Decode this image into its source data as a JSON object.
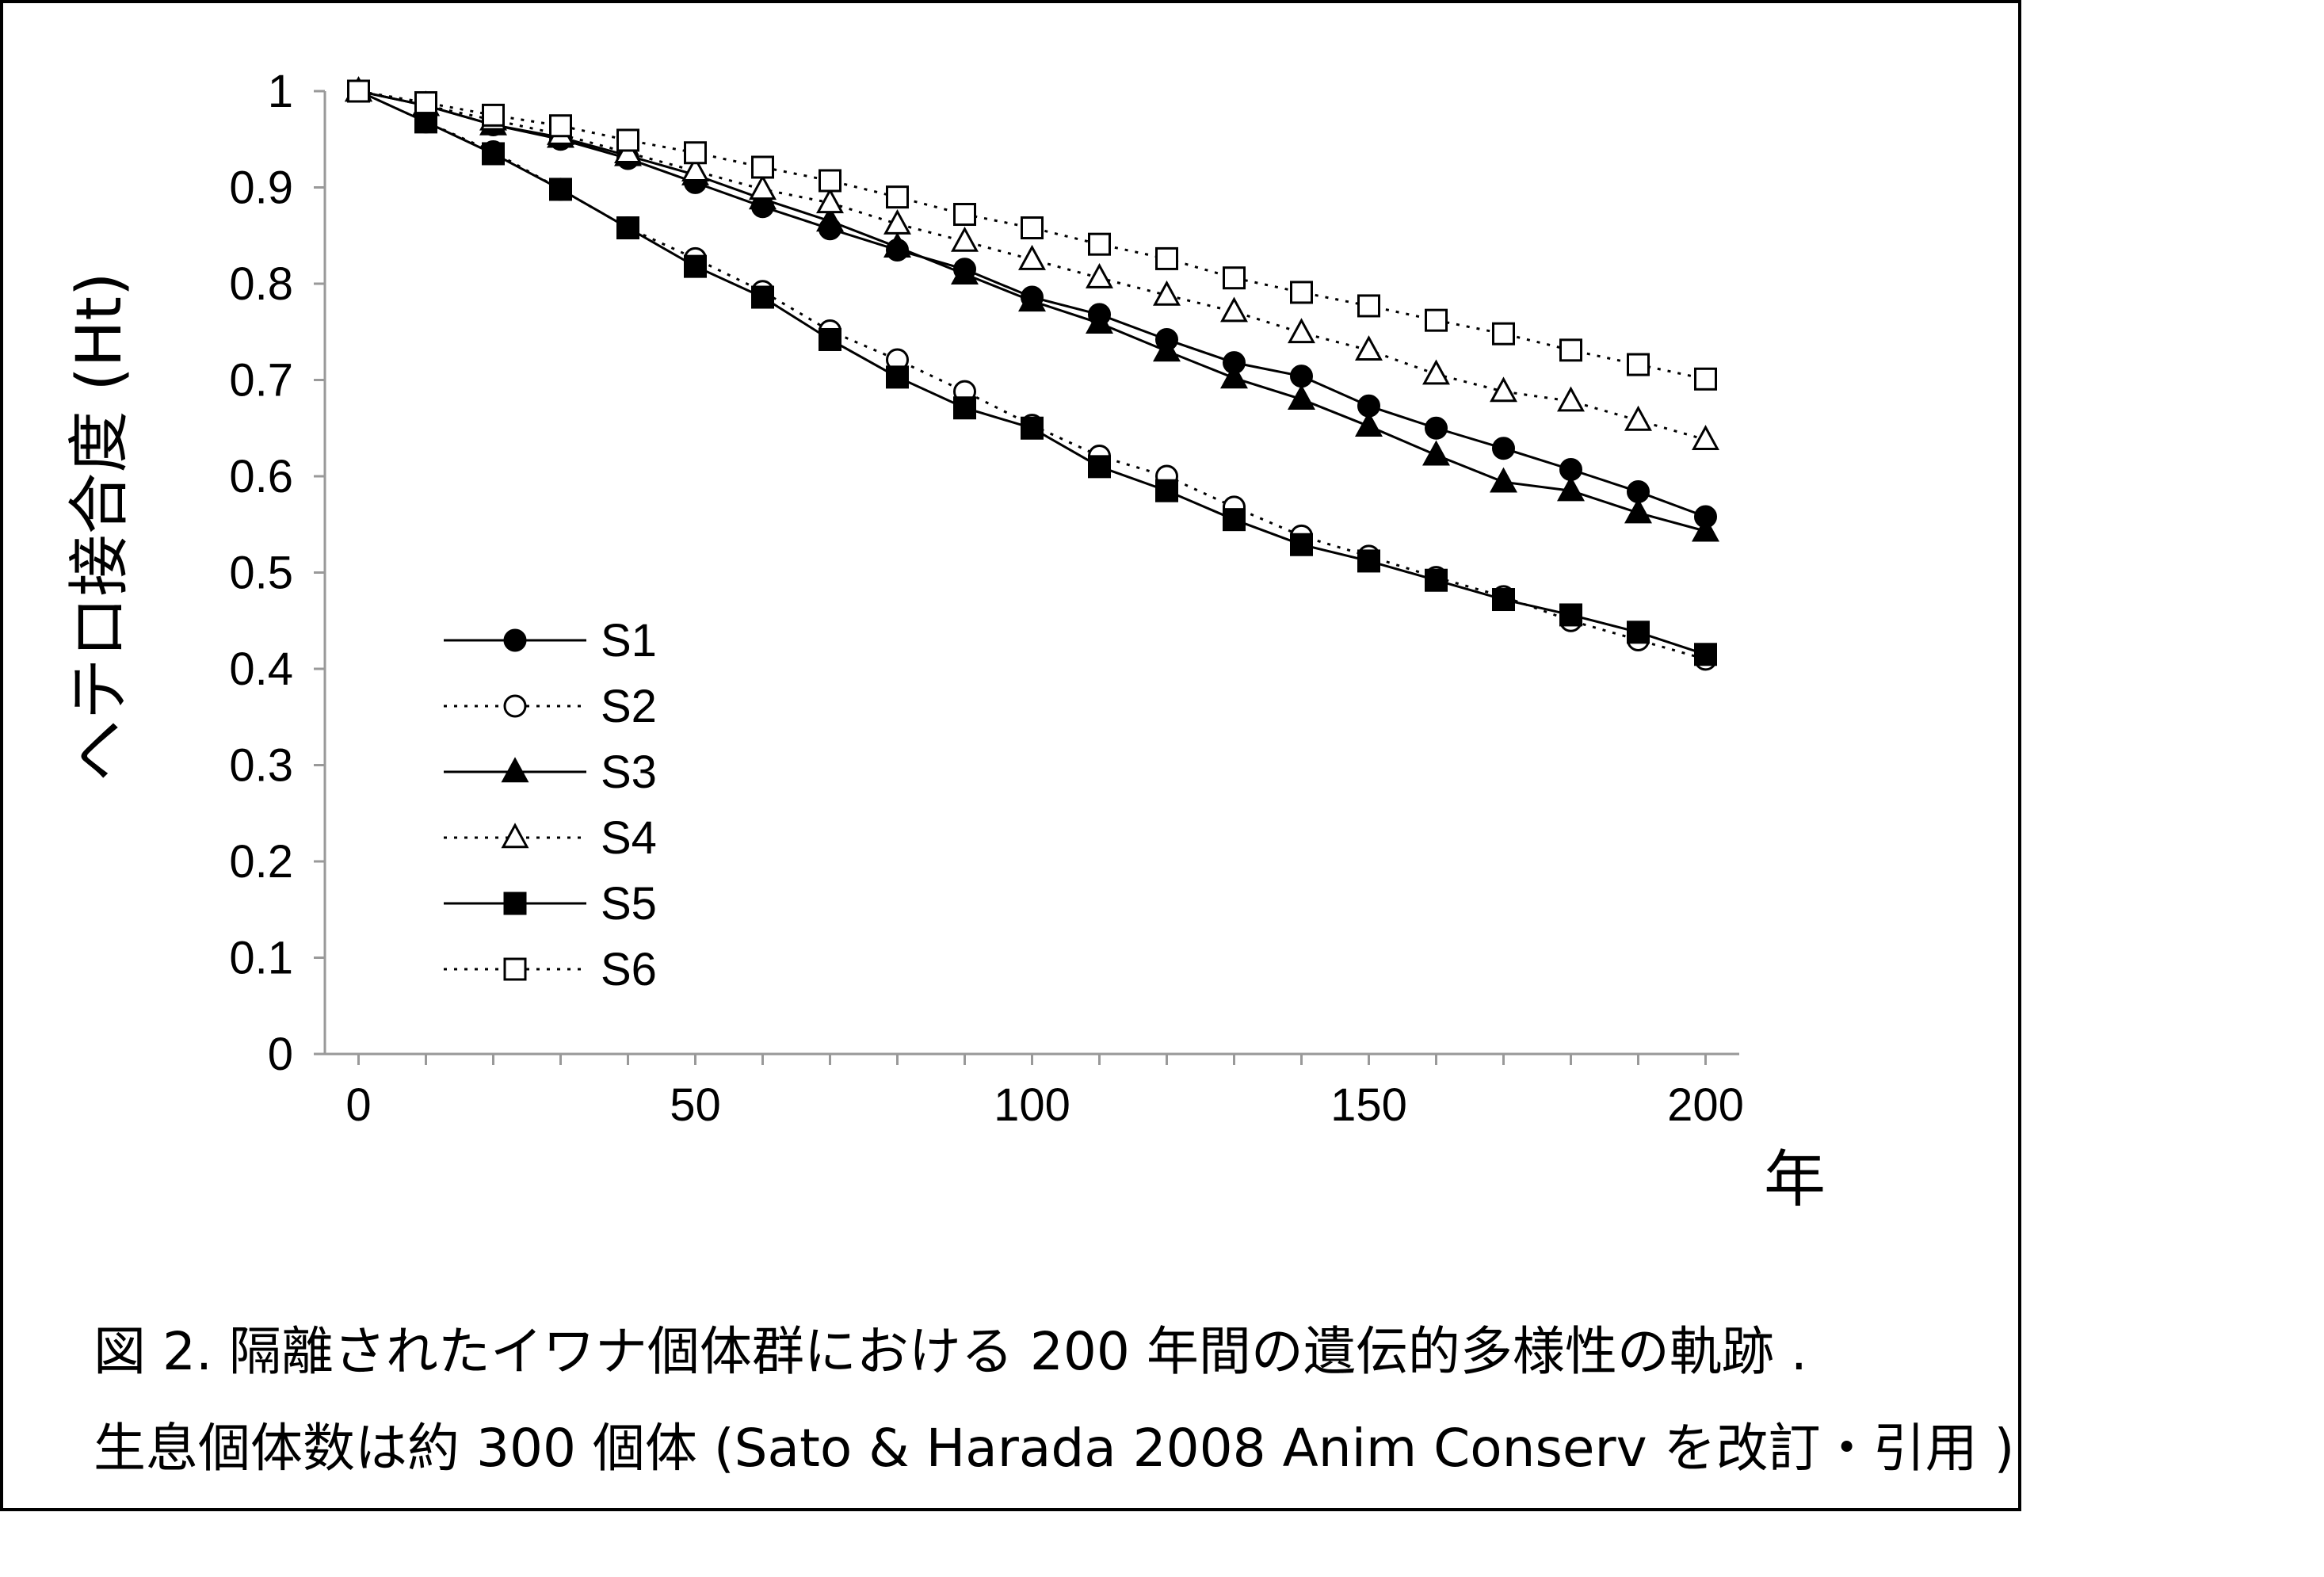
{
  "chart_data": {
    "type": "line",
    "title": "",
    "xlabel": "年",
    "ylabel": "ヘテロ接合度 (Ht)",
    "xlim": [
      -5,
      205
    ],
    "ylim": [
      0,
      1
    ],
    "x_ticks": [
      "0",
      "50",
      "100",
      "150",
      "200"
    ],
    "y_ticks": [
      "0",
      "0.1",
      "0.2",
      "0.3",
      "0.4",
      "0.5",
      "0.6",
      "0.7",
      "0.8",
      "0.9",
      "1"
    ],
    "grid": false,
    "legend_position": "lower-left",
    "x": [
      0,
      10,
      20,
      30,
      40,
      50,
      60,
      70,
      80,
      90,
      100,
      110,
      120,
      130,
      140,
      150,
      160,
      170,
      180,
      190,
      200
    ],
    "series": [
      {
        "name": "S1",
        "marker": "filled-circle",
        "line": "solid",
        "values": [
          1.0,
          0.985,
          0.965,
          0.95,
          0.93,
          0.905,
          0.88,
          0.857,
          0.835,
          0.815,
          0.786,
          0.768,
          0.742,
          0.718,
          0.704,
          0.673,
          0.65,
          0.629,
          0.607,
          0.584,
          0.558
        ]
      },
      {
        "name": "S2",
        "marker": "open-circle",
        "line": "dotted",
        "values": [
          1.0,
          0.968,
          0.937,
          0.898,
          0.858,
          0.826,
          0.792,
          0.751,
          0.721,
          0.688,
          0.653,
          0.621,
          0.6,
          0.568,
          0.538,
          0.517,
          0.495,
          0.475,
          0.45,
          0.43,
          0.41
        ]
      },
      {
        "name": "S3",
        "marker": "filled-triangle",
        "line": "solid",
        "values": [
          1.0,
          0.985,
          0.965,
          0.952,
          0.933,
          0.913,
          0.888,
          0.865,
          0.838,
          0.81,
          0.782,
          0.759,
          0.73,
          0.702,
          0.68,
          0.652,
          0.622,
          0.594,
          0.585,
          0.562,
          0.543
        ]
      },
      {
        "name": "S4",
        "marker": "open-triangle",
        "line": "dotted",
        "values": [
          1.0,
          0.985,
          0.97,
          0.955,
          0.936,
          0.917,
          0.898,
          0.884,
          0.862,
          0.844,
          0.825,
          0.806,
          0.788,
          0.771,
          0.749,
          0.731,
          0.706,
          0.688,
          0.678,
          0.658,
          0.638
        ]
      },
      {
        "name": "S5",
        "marker": "filled-square",
        "line": "solid",
        "values": [
          1.0,
          0.968,
          0.935,
          0.898,
          0.858,
          0.818,
          0.786,
          0.742,
          0.703,
          0.671,
          0.65,
          0.61,
          0.585,
          0.555,
          0.529,
          0.512,
          0.492,
          0.472,
          0.456,
          0.438,
          0.415
        ]
      },
      {
        "name": "S6",
        "marker": "open-square",
        "line": "dotted",
        "values": [
          1.0,
          0.988,
          0.975,
          0.964,
          0.949,
          0.936,
          0.921,
          0.907,
          0.89,
          0.872,
          0.858,
          0.841,
          0.826,
          0.806,
          0.791,
          0.777,
          0.762,
          0.748,
          0.731,
          0.716,
          0.701
        ]
      }
    ]
  },
  "caption": {
    "line1": "図 2. 隔離されたイワナ個体群における 200 年間の遺伝的多様性の軌跡 .",
    "line2": "生息個体数は約 300 個体 (Sato & Harada 2008 Anim Conserv を改訂・引用 )"
  }
}
